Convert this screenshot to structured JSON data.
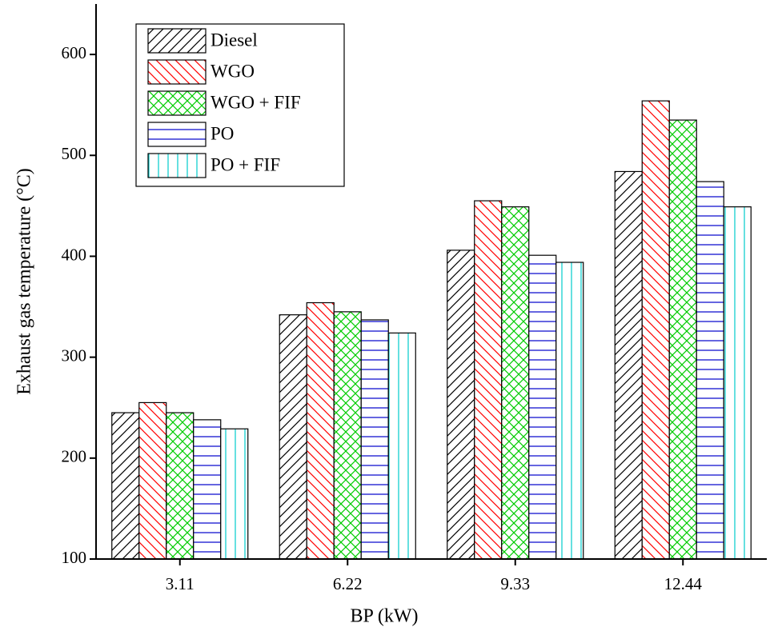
{
  "chart_data": {
    "type": "bar",
    "x_label": "BP (kW)",
    "y_label": "Exhaust gas temperature (°C)",
    "categories": [
      "3.11",
      "6.22",
      "9.33",
      "12.44"
    ],
    "series": [
      {
        "name": "Diesel",
        "color": "#000000",
        "hatch": "forward",
        "values": [
          245,
          342,
          406,
          484
        ]
      },
      {
        "name": "WGO",
        "color": "#ff0000",
        "hatch": "backward",
        "values": [
          255,
          354,
          455,
          554
        ]
      },
      {
        "name": "WGO + FIF",
        "color": "#00cc00",
        "hatch": "cross",
        "values": [
          245,
          345,
          449,
          535
        ]
      },
      {
        "name": "PO",
        "color": "#0000cc",
        "hatch": "horizontal",
        "values": [
          238,
          337,
          401,
          474
        ]
      },
      {
        "name": "PO + FIF",
        "color": "#00cccc",
        "hatch": "vertical",
        "values": [
          229,
          324,
          394,
          449
        ]
      }
    ],
    "ylim": [
      100,
      650
    ],
    "yticks": [
      100,
      200,
      300,
      400,
      500,
      600
    ],
    "legend": "upper left"
  }
}
